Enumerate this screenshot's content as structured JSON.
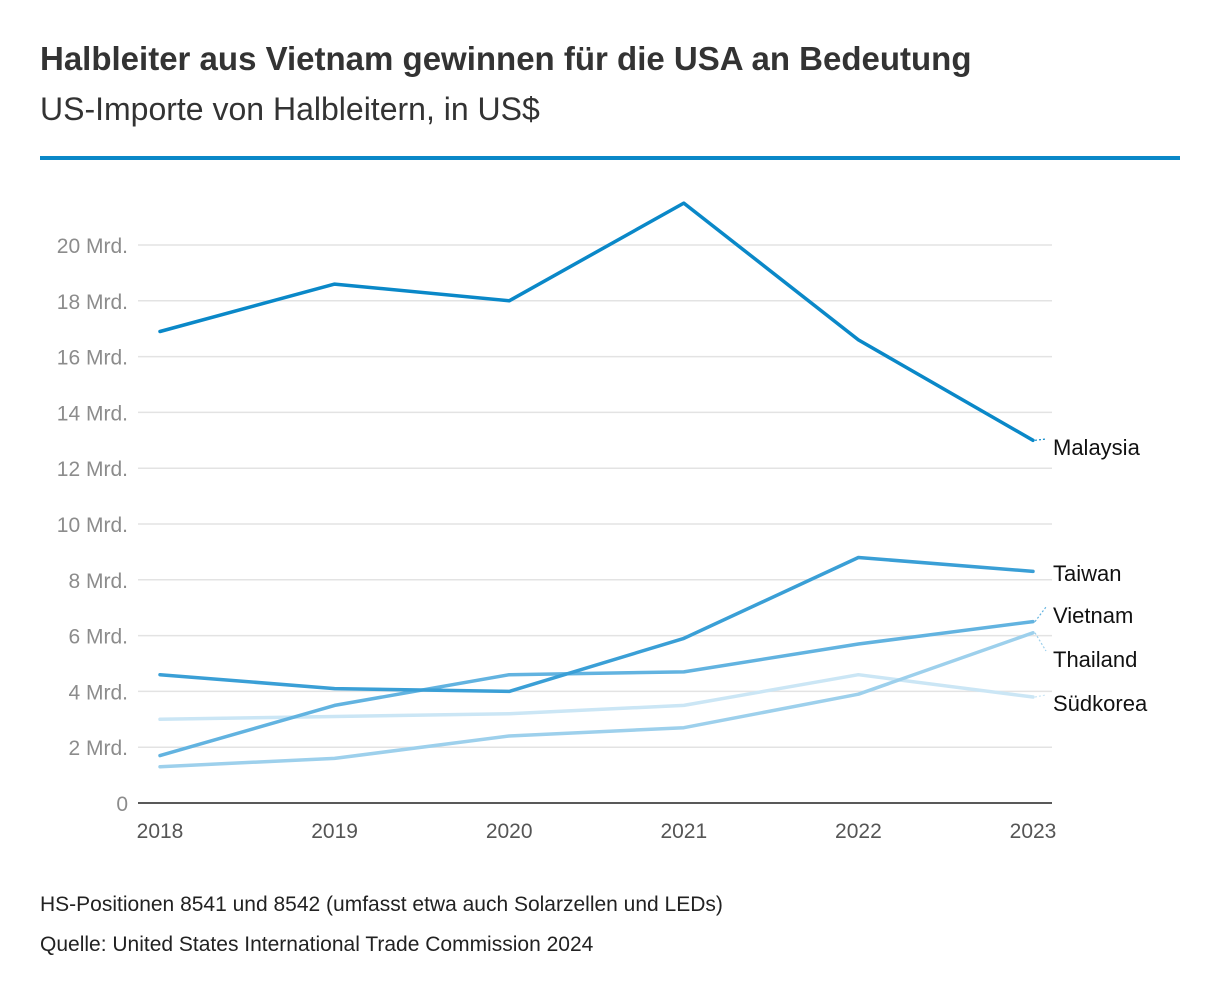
{
  "title": "Halbleiter aus Vietnam gewinnen für die USA an Bedeutung",
  "subtitle": "US-Importe von Halbleitern, in US$",
  "note": "HS-Positionen 8541 und 8542 (umfasst etwa auch Solarzellen und LEDs)",
  "source": "Quelle: United States International Trade Commission 2024",
  "colors": {
    "accent": "#0a88c8",
    "grid": "#e3e3e3",
    "tick_text": "#8c8c8c",
    "axis": "#222222"
  },
  "chart_data": {
    "type": "line",
    "x": [
      "2018",
      "2019",
      "2020",
      "2021",
      "2022",
      "2023"
    ],
    "ylim": [
      0,
      22
    ],
    "yticks": [
      0,
      2,
      4,
      6,
      8,
      10,
      12,
      14,
      16,
      18,
      20
    ],
    "ytick_labels": [
      "0",
      "2 Mrd.",
      "4 Mrd.",
      "6 Mrd.",
      "8 Mrd.",
      "10 Mrd.",
      "12 Mrd.",
      "14 Mrd.",
      "16 Mrd.",
      "18 Mrd.",
      "20 Mrd."
    ],
    "grid": true,
    "legend": "direct labels at right",
    "series": [
      {
        "name": "Malaysia",
        "values": [
          16.9,
          18.6,
          18.0,
          21.5,
          16.6,
          13.0
        ],
        "color": "#0a88c8"
      },
      {
        "name": "Taiwan",
        "values": [
          4.6,
          4.1,
          4.0,
          5.9,
          8.8,
          8.3
        ],
        "color": "#3a9fd6"
      },
      {
        "name": "Vietnam",
        "values": [
          1.7,
          3.5,
          4.6,
          4.7,
          5.7,
          6.5
        ],
        "color": "#62b3e0"
      },
      {
        "name": "Thailand",
        "values": [
          1.3,
          1.6,
          2.4,
          2.7,
          3.9,
          6.1
        ],
        "color": "#9dd0ec"
      },
      {
        "name": "Südkorea",
        "values": [
          3.0,
          3.1,
          3.2,
          3.5,
          4.6,
          3.8
        ],
        "color": "#cbe6f5"
      }
    ]
  }
}
